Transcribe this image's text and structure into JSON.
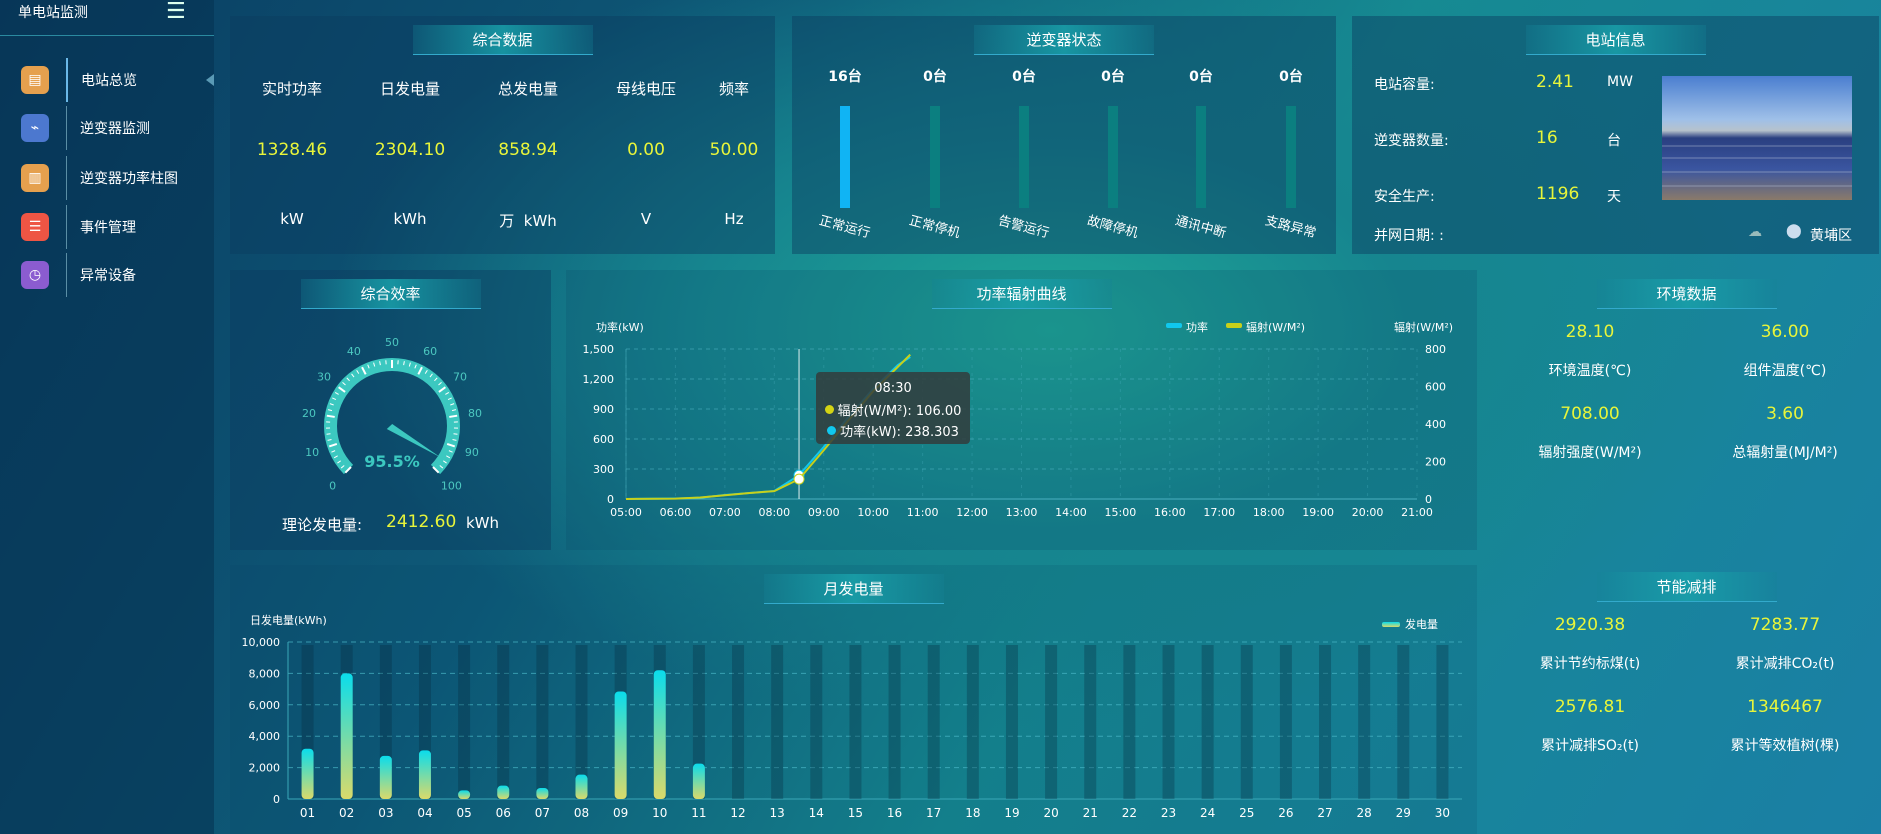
{
  "sidebar": {
    "title": "单电站监测",
    "items": [
      {
        "label": "电站总览",
        "icon": "document-icon",
        "color": "#e5a04e",
        "active": true
      },
      {
        "label": "逆变器监测",
        "icon": "monitor-icon",
        "color": "#4c78cf"
      },
      {
        "label": "逆变器功率柱图",
        "icon": "bar-chart-icon",
        "color": "#e5a04e"
      },
      {
        "label": "事件管理",
        "icon": "notepad-icon",
        "color": "#ee5544"
      },
      {
        "label": "异常设备",
        "icon": "clock-alert-icon",
        "color": "#8b5cd0"
      }
    ]
  },
  "summary": {
    "title": "综合数据",
    "cols": [
      {
        "label": "实时功率",
        "value": "1328.46",
        "unit": "kW"
      },
      {
        "label": "日发电量",
        "value": "2304.10",
        "unit": "kWh"
      },
      {
        "label": "总发电量",
        "value": "858.94",
        "unit": "万  kWh"
      },
      {
        "label": "母线电压",
        "value": "0.00",
        "unit": "V"
      },
      {
        "label": "频率",
        "value": "50.00",
        "unit": "Hz"
      }
    ]
  },
  "inverter_status": {
    "title": "逆变器状态",
    "items": [
      {
        "label": "正常运行",
        "count": "16台",
        "value": 16,
        "color": "#10b4f4"
      },
      {
        "label": "正常停机",
        "count": "0台",
        "value": 0
      },
      {
        "label": "告警运行",
        "count": "0台",
        "value": 0
      },
      {
        "label": "故障停机",
        "count": "0台",
        "value": 0
      },
      {
        "label": "通讯中断",
        "count": "0台",
        "value": 0
      },
      {
        "label": "支路异常",
        "count": "0台",
        "value": 0
      }
    ]
  },
  "station": {
    "title": "电站信息",
    "capacity_label": "电站容量:",
    "capacity": "2.41",
    "capacity_unit": "MW",
    "inverters_label": "逆变器数量:",
    "inverters": "16",
    "inverters_unit": "台",
    "safe_label": "安全生产:",
    "safe": "1196",
    "safe_unit": "天",
    "grid_date_label": "并网日期: :",
    "location": "黄埔区"
  },
  "efficiency": {
    "title": "综合效率",
    "value": 95.5,
    "value_text": "95.5%",
    "ticks": [
      "0",
      "10",
      "20",
      "30",
      "40",
      "50",
      "60",
      "70",
      "80",
      "90",
      "100"
    ],
    "theory_label": "理论发电量:",
    "theory_value": "2412.60",
    "theory_unit": "kWh"
  },
  "power_chart": {
    "title": "功率辐射曲线"
  },
  "env": {
    "title": "环境数据",
    "items": [
      {
        "value": "28.10",
        "label": "环境温度(℃)"
      },
      {
        "value": "36.00",
        "label": "组件温度(℃)"
      },
      {
        "value": "708.00",
        "label": "辐射强度(W/M²)"
      },
      {
        "value": "3.60",
        "label": "总辐射量(MJ/M²)"
      }
    ]
  },
  "saving": {
    "title": "节能减排",
    "items": [
      {
        "value": "2920.38",
        "label": "累计节约标煤(t)"
      },
      {
        "value": "7283.77",
        "label": "累计减排CO₂(t)"
      },
      {
        "value": "2576.81",
        "label": "累计减排SO₂(t)"
      },
      {
        "value": "1346467",
        "label": "累计等效植树(棵)"
      }
    ]
  },
  "monthly": {
    "title": "月发电量"
  },
  "chart_data": [
    {
      "type": "line",
      "title": "功率辐射曲线",
      "x": [
        "05:00",
        "06:00",
        "06:30",
        "07:00",
        "07:30",
        "08:00",
        "08:30",
        "09:00",
        "09:30",
        "10:00",
        "10:30",
        "10:45"
      ],
      "xticks": [
        "05:00",
        "06:00",
        "07:00",
        "08:00",
        "09:00",
        "10:00",
        "11:00",
        "12:00",
        "13:00",
        "14:00",
        "15:00",
        "16:00",
        "17:00",
        "18:00",
        "19:00",
        "20:00",
        "21:00"
      ],
      "ylabel": "功率(kW)",
      "ylabel_right": "辐射(W/M²)",
      "ylim": [
        0,
        1500
      ],
      "ylim_right": [
        0,
        800
      ],
      "yticks": [
        "0",
        "300",
        "600",
        "900",
        "1,200",
        "1,500"
      ],
      "yticks_right": [
        "0",
        "200",
        "400",
        "600",
        "800"
      ],
      "legend": "top-right",
      "series": [
        {
          "name": "功率",
          "axis": "left",
          "color": "#10c8ee",
          "values": [
            0,
            5,
            12,
            40,
            60,
            80,
            238.303,
            520,
            820,
            1100,
            1340,
            1420
          ]
        },
        {
          "name": "辐射(W/M²)",
          "axis": "right",
          "color": "#c8d01a",
          "values": [
            0,
            2,
            8,
            20,
            32,
            42,
            106,
            260,
            420,
            575,
            705,
            770
          ]
        }
      ],
      "tooltip": {
        "time": "08:30",
        "lines": [
          {
            "label": "辐射(W/M²): 106.00",
            "color": "#d4d414"
          },
          {
            "label": "功率(kW): 238.303",
            "color": "#10c8ee"
          }
        ]
      }
    },
    {
      "type": "bar",
      "title": "月发电量",
      "ylabel": "日发电量(kWh)",
      "ylim": [
        0,
        10000
      ],
      "yticks": [
        "0",
        "2,000",
        "4,000",
        "6,000",
        "8,000",
        "10,000"
      ],
      "legend": "top-right",
      "series_name": "发电量",
      "categories": [
        "01",
        "02",
        "03",
        "04",
        "05",
        "06",
        "07",
        "08",
        "09",
        "10",
        "11",
        "12",
        "13",
        "14",
        "15",
        "16",
        "17",
        "18",
        "19",
        "20",
        "21",
        "22",
        "23",
        "24",
        "25",
        "26",
        "27",
        "28",
        "29",
        "30"
      ],
      "values": [
        3200,
        8000,
        2750,
        3100,
        550,
        850,
        700,
        1550,
        6850,
        8200,
        2250,
        0,
        0,
        0,
        0,
        0,
        0,
        0,
        0,
        0,
        0,
        0,
        0,
        0,
        0,
        0,
        0,
        0,
        0,
        0
      ]
    }
  ]
}
